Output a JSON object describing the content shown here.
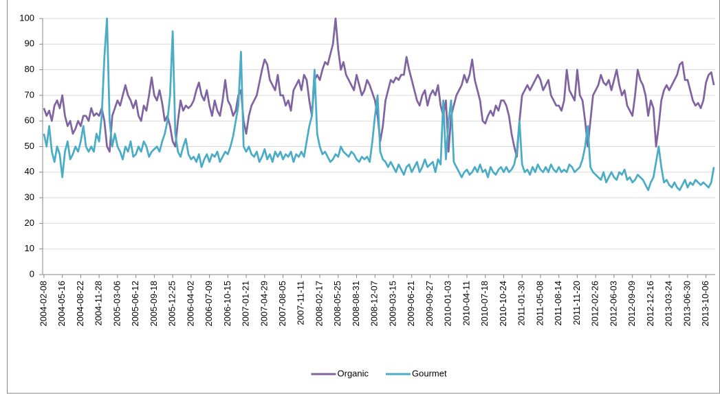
{
  "chart_data": {
    "type": "line",
    "categories": [
      "2004-02-08",
      null,
      null,
      null,
      null,
      null,
      null,
      "2004-05-16",
      null,
      null,
      null,
      null,
      null,
      null,
      "2004-08-22",
      null,
      null,
      null,
      null,
      null,
      null,
      "2004-11-28",
      null,
      null,
      null,
      null,
      null,
      null,
      "2005-03-06",
      null,
      null,
      null,
      null,
      null,
      null,
      "2005-06-12",
      null,
      null,
      null,
      null,
      null,
      null,
      "2005-09-18",
      null,
      null,
      null,
      null,
      null,
      null,
      "2005-12-25",
      null,
      null,
      null,
      null,
      null,
      null,
      "2006-04-02",
      null,
      null,
      null,
      null,
      null,
      null,
      "2006-07-09",
      null,
      null,
      null,
      null,
      null,
      null,
      "2006-10-15",
      null,
      null,
      null,
      null,
      null,
      null,
      "2007-01-21",
      null,
      null,
      null,
      null,
      null,
      null,
      "2007-04-29",
      null,
      null,
      null,
      null,
      null,
      null,
      "2007-08-05",
      null,
      null,
      null,
      null,
      null,
      null,
      "2007-11-11",
      null,
      null,
      null,
      null,
      null,
      null,
      "2008-02-17",
      null,
      null,
      null,
      null,
      null,
      null,
      "2008-05-25",
      null,
      null,
      null,
      null,
      null,
      null,
      "2008-08-31",
      null,
      null,
      null,
      null,
      null,
      null,
      "2008-12-07",
      null,
      null,
      null,
      null,
      null,
      null,
      "2009-03-15",
      null,
      null,
      null,
      null,
      null,
      null,
      "2009-06-21",
      null,
      null,
      null,
      null,
      null,
      null,
      "2009-09-27",
      null,
      null,
      null,
      null,
      null,
      null,
      "2010-01-03",
      null,
      null,
      null,
      null,
      null,
      null,
      "2010-04-11",
      null,
      null,
      null,
      null,
      null,
      null,
      "2010-07-18",
      null,
      null,
      null,
      null,
      null,
      null,
      "2010-10-24",
      null,
      null,
      null,
      null,
      null,
      null,
      "2011-01-30",
      null,
      null,
      null,
      null,
      null,
      null,
      "2011-05-08",
      null,
      null,
      null,
      null,
      null,
      null,
      "2011-08-14",
      null,
      null,
      null,
      null,
      null,
      null,
      "2011-11-20",
      null,
      null,
      null,
      null,
      null,
      null,
      "2012-02-26",
      null,
      null,
      null,
      null,
      null,
      null,
      "2012-06-03",
      null,
      null,
      null,
      null,
      null,
      null,
      "2012-09-09",
      null,
      null,
      null,
      null,
      null,
      null,
      "2012-12-16",
      null,
      null,
      null,
      null,
      null,
      null,
      "2013-03-24",
      null,
      null,
      null,
      null,
      null,
      null,
      "2013-06-30",
      null,
      null,
      null,
      null,
      null,
      null,
      "2013-10-06",
      null,
      null,
      null
    ],
    "series": [
      {
        "name": "Organic",
        "color": "#8064a2",
        "values": [
          65,
          62,
          64,
          60,
          66,
          68,
          65,
          70,
          62,
          58,
          60,
          55,
          57,
          60,
          58,
          62,
          62,
          60,
          65,
          62,
          63,
          62,
          65,
          60,
          50,
          48,
          62,
          65,
          68,
          66,
          70,
          74,
          70,
          68,
          65,
          68,
          62,
          60,
          66,
          64,
          70,
          77,
          70,
          68,
          72,
          67,
          60,
          62,
          58,
          52,
          50,
          60,
          68,
          64,
          66,
          65,
          66,
          68,
          72,
          75,
          70,
          68,
          72,
          66,
          62,
          68,
          64,
          62,
          68,
          76,
          68,
          66,
          62,
          64,
          70,
          72,
          60,
          55,
          62,
          66,
          68,
          70,
          75,
          80,
          84,
          82,
          76,
          74,
          72,
          78,
          70,
          70,
          66,
          68,
          64,
          72,
          74,
          76,
          72,
          78,
          76,
          68,
          62,
          76,
          78,
          76,
          80,
          83,
          82,
          86,
          90,
          100,
          88,
          80,
          83,
          78,
          76,
          74,
          72,
          78,
          74,
          70,
          72,
          76,
          74,
          71,
          68,
          62,
          52,
          58,
          68,
          72,
          76,
          75,
          77,
          76,
          78,
          78,
          85,
          80,
          76,
          72,
          68,
          66,
          70,
          72,
          66,
          70,
          72,
          70,
          74,
          66,
          62,
          68,
          48,
          62,
          66,
          70,
          72,
          74,
          78,
          75,
          78,
          84,
          76,
          72,
          68,
          60,
          59,
          62,
          64,
          62,
          66,
          64,
          68,
          68,
          66,
          62,
          55,
          50,
          46,
          60,
          70,
          72,
          74,
          72,
          74,
          76,
          78,
          76,
          72,
          74,
          76,
          70,
          68,
          66,
          66,
          64,
          68,
          80,
          72,
          70,
          68,
          80,
          70,
          68,
          60,
          50,
          60,
          70,
          72,
          74,
          78,
          75,
          74,
          76,
          72,
          76,
          80,
          74,
          70,
          72,
          66,
          64,
          62,
          70,
          80,
          76,
          74,
          70,
          62,
          68,
          65,
          50,
          58,
          68,
          72,
          74,
          72,
          74,
          76,
          78,
          82,
          83,
          76,
          76,
          72,
          68,
          66,
          67,
          65,
          68,
          75,
          78,
          79,
          74
        ]
      },
      {
        "name": "Gourmet",
        "color": "#4bacc6",
        "values": [
          55,
          50,
          58,
          48,
          44,
          50,
          47,
          38,
          48,
          52,
          45,
          47,
          50,
          48,
          52,
          58,
          50,
          48,
          50,
          48,
          55,
          52,
          62,
          85,
          100,
          60,
          50,
          55,
          50,
          48,
          45,
          50,
          48,
          52,
          46,
          47,
          50,
          48,
          52,
          50,
          46,
          48,
          49,
          50,
          48,
          52,
          55,
          60,
          70,
          95,
          55,
          48,
          46,
          50,
          53,
          47,
          45,
          46,
          44,
          47,
          42,
          45,
          47,
          44,
          47,
          46,
          48,
          44,
          46,
          48,
          47,
          50,
          54,
          60,
          66,
          87,
          50,
          48,
          50,
          47,
          46,
          48,
          44,
          46,
          49,
          45,
          47,
          44,
          48,
          46,
          48,
          45,
          47,
          46,
          48,
          44,
          47,
          46,
          48,
          46,
          52,
          58,
          62,
          80,
          55,
          50,
          47,
          48,
          46,
          44,
          45,
          47,
          46,
          50,
          48,
          47,
          46,
          48,
          47,
          45,
          44,
          46,
          45,
          46,
          44,
          52,
          62,
          70,
          48,
          45,
          44,
          42,
          44,
          42,
          40,
          43,
          41,
          39,
          42,
          43,
          40,
          42,
          44,
          40,
          42,
          45,
          42,
          43,
          44,
          40,
          45,
          43,
          68,
          45,
          60,
          68,
          44,
          42,
          40,
          38,
          40,
          41,
          39,
          40,
          42,
          40,
          43,
          40,
          41,
          38,
          42,
          40,
          39,
          41,
          42,
          40,
          42,
          40,
          41,
          43,
          48,
          60,
          43,
          40,
          41,
          39,
          42,
          40,
          43,
          41,
          40,
          42,
          40,
          43,
          41,
          40,
          42,
          40,
          41,
          40,
          43,
          42,
          40,
          41,
          42,
          45,
          50,
          58,
          42,
          40,
          39,
          38,
          37,
          40,
          36,
          38,
          40,
          38,
          37,
          40,
          39,
          41,
          37,
          38,
          36,
          37,
          39,
          38,
          37,
          35,
          33,
          36,
          38,
          44,
          50,
          42,
          36,
          37,
          35,
          34,
          36,
          34,
          33,
          35,
          37,
          34,
          36,
          35,
          37,
          36,
          35,
          36,
          35,
          34,
          36,
          42
        ]
      }
    ],
    "ylim": [
      0,
      100
    ],
    "yticks": [
      0,
      10,
      20,
      30,
      40,
      50,
      60,
      70,
      80,
      90,
      100
    ],
    "grid": true,
    "legend": "bottom"
  }
}
